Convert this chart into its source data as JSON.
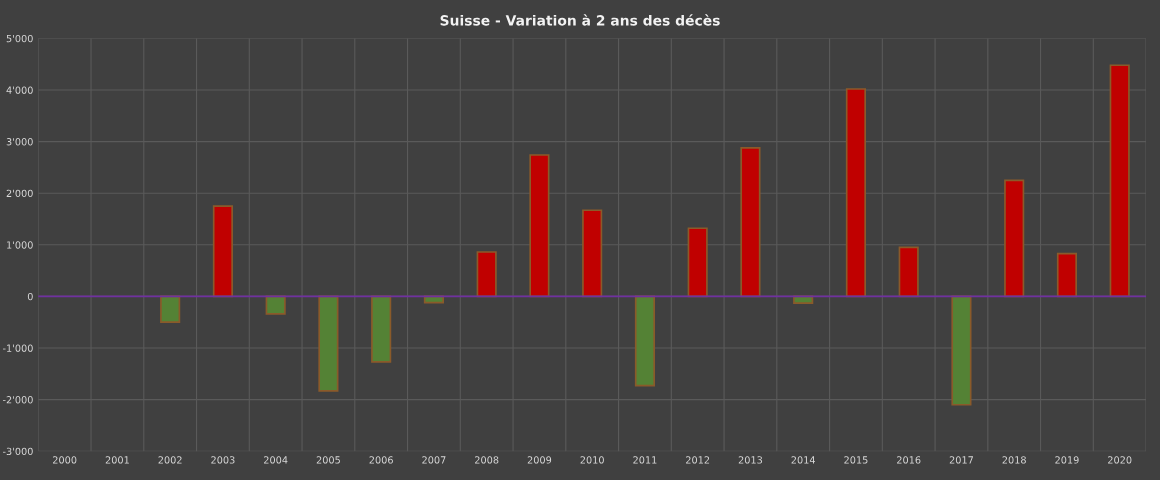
{
  "chart_data": {
    "type": "bar",
    "title": "Suisse - Variation à 2 ans des décès",
    "categories": [
      "2000",
      "2001",
      "2002",
      "2003",
      "2004",
      "2005",
      "2006",
      "2007",
      "2008",
      "2009",
      "2010",
      "2011",
      "2012",
      "2013",
      "2014",
      "2015",
      "2016",
      "2017",
      "2018",
      "2019",
      "2020"
    ],
    "values": [
      null,
      null,
      -500,
      1750,
      -340,
      -1830,
      -1270,
      -120,
      860,
      2740,
      1670,
      -1730,
      1320,
      2880,
      -130,
      4020,
      950,
      -2100,
      2250,
      830,
      4480
    ],
    "colors": [
      "#548235",
      "#548235",
      "#548235",
      "#c00000",
      "#548235",
      "#548235",
      "#548235",
      "#548235",
      "#c00000",
      "#c00000",
      "#c00000",
      "#548235",
      "#c00000",
      "#c00000",
      "#548235",
      "#c00000",
      "#c00000",
      "#548235",
      "#c00000",
      "#c00000",
      "#c00000"
    ],
    "ylim": [
      -3000,
      5000
    ],
    "yticks": [
      {
        "value": -3000,
        "label": "-3'000"
      },
      {
        "value": -2000,
        "label": "-2'000"
      },
      {
        "value": -1000,
        "label": "-1'000"
      },
      0,
      {
        "value": 1000,
        "label": "1'000"
      },
      {
        "value": 2000,
        "label": "2'000"
      },
      {
        "value": 3000,
        "label": "3'000"
      },
      {
        "value": 4000,
        "label": "4'000"
      },
      {
        "value": 5000,
        "label": "5'000"
      }
    ],
    "ref_lines": [
      {
        "axis": "y",
        "value": 0,
        "color": "#7030a0"
      }
    ],
    "grid": true,
    "legend": false
  }
}
